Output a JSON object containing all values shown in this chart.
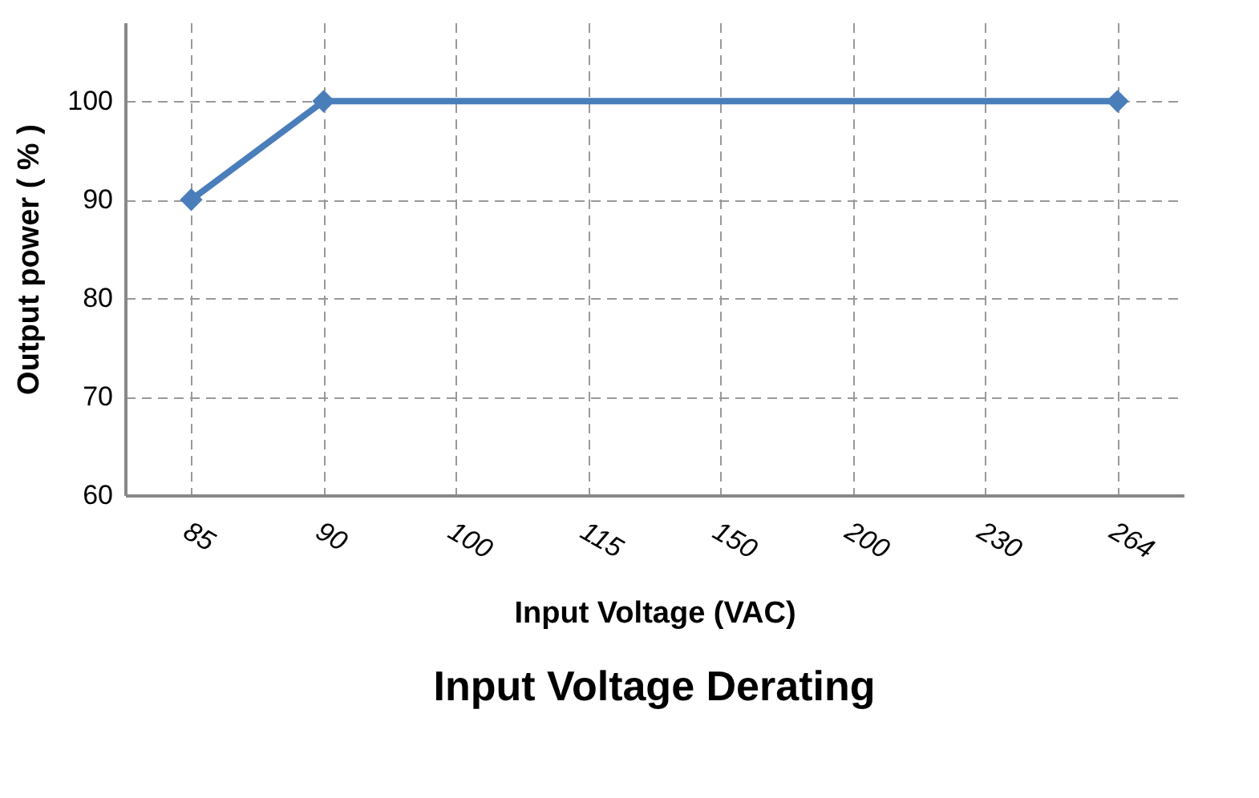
{
  "chart_data": {
    "type": "line",
    "title": "Input Voltage Derating",
    "xlabel": "Input Voltage (VAC)",
    "ylabel": "Output power ( % )",
    "categories": [
      "85",
      "90",
      "100",
      "115",
      "150",
      "200",
      "230",
      "264"
    ],
    "series": [
      {
        "color": "#4a7ebb",
        "values": [
          90,
          100,
          null,
          null,
          null,
          null,
          null,
          100
        ]
      }
    ],
    "ylim": [
      60,
      108
    ],
    "yticks": [
      60,
      70,
      80,
      90,
      100
    ],
    "grid": true,
    "marker": "diamond",
    "line_style": "solid"
  }
}
